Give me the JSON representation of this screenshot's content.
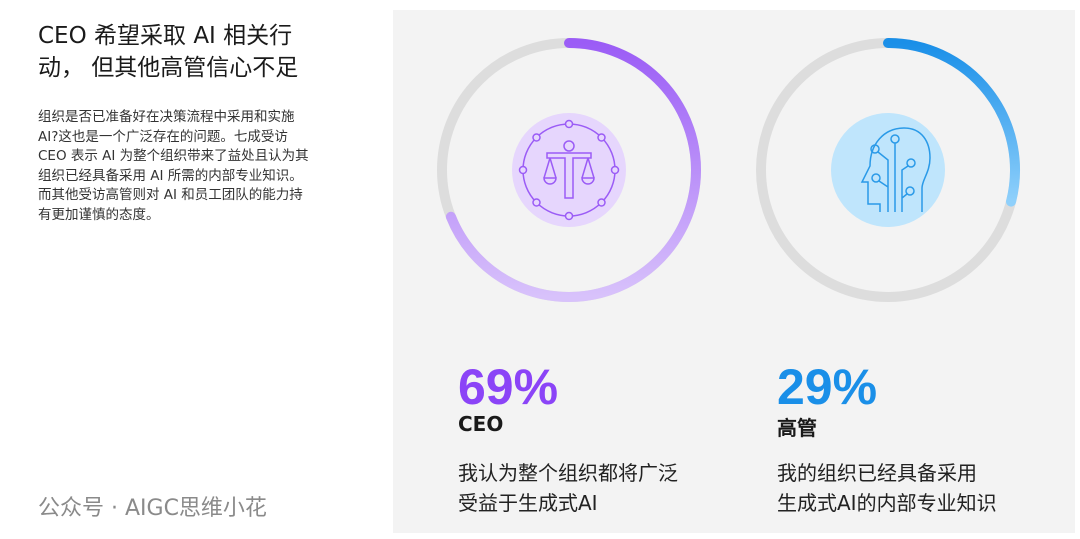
{
  "heading": {
    "line1": "CEO 希望采取 AI 相关行",
    "line2": "动， 但其他高管信心不足"
  },
  "body_lines": [
    "组织是否已准备好在决策流程中采用和实施",
    "AI?这也是一个广泛存在的问题。七成受访",
    "CEO 表示 AI 为整个组织带来了益处且认为其",
    "组织已经具备采用 AI 所需的内部专业知识。",
    "而其他受访高管则对 AI 和员工团队的能力持",
    "有更加谨慎的态度。"
  ],
  "stats": [
    {
      "value": "69%",
      "percent": 69,
      "label": "CEO",
      "desc1": "我认为整个组织都将广泛",
      "desc2": "受益于生成式AI",
      "color": "#8b44f7",
      "icon": "scales-person-icon"
    },
    {
      "value": "29%",
      "percent": 29,
      "label": "高管",
      "desc1": "我的组织已经具备采用",
      "desc2": "生成式AI的内部专业知识",
      "color": "#1a8fe8",
      "icon": "ai-head-icon"
    }
  ],
  "watermark": "公众号 · AIGC思维小花"
}
